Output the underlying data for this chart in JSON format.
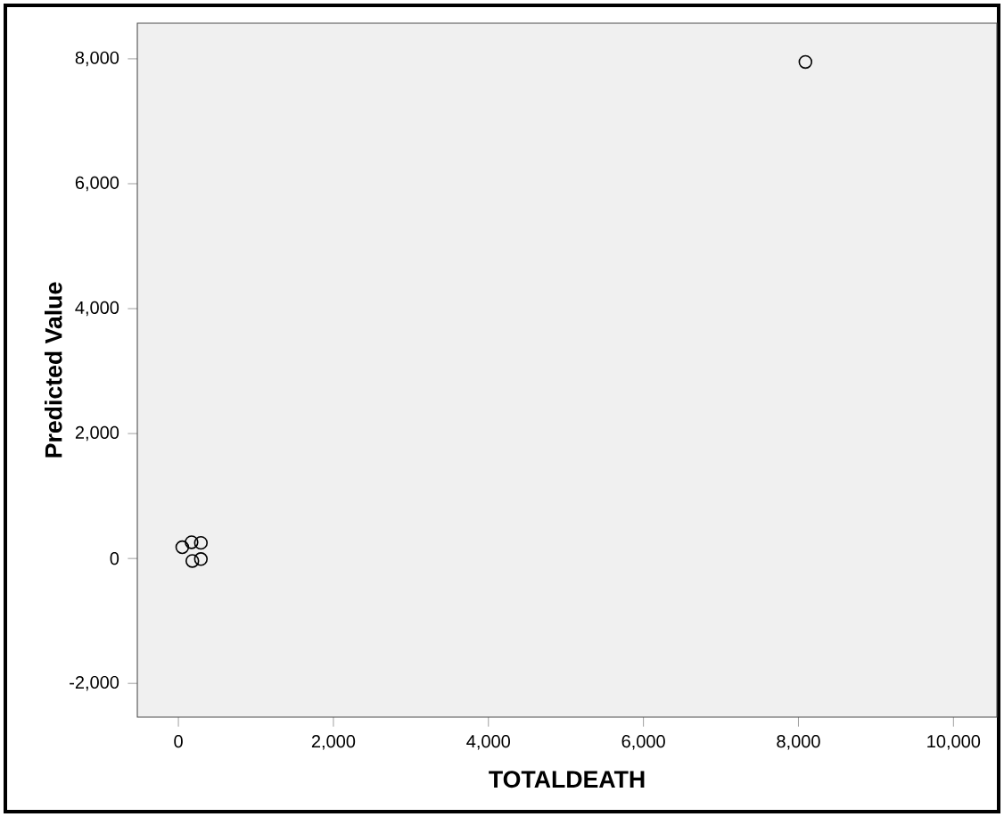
{
  "chart_data": {
    "type": "scatter",
    "xlabel": "TOTALDEATH",
    "ylabel": "Predicted Value",
    "x": [
      8090,
      50,
      170,
      290,
      180,
      290
    ],
    "values": [
      7950,
      180,
      260,
      250,
      -40,
      -10
    ],
    "color": "#000000",
    "marker": "circle",
    "xlim": [
      -530,
      10560
    ],
    "ylim": [
      -2540,
      8570
    ],
    "xticks": [
      0,
      {
        "value": 2000,
        "label": "2,000"
      },
      {
        "value": 4000,
        "label": "4,000"
      },
      {
        "value": 6000,
        "label": "6,000"
      },
      {
        "value": 8000,
        "label": "8,000"
      },
      {
        "value": 10000,
        "label": "10,000"
      }
    ],
    "yticks": [
      {
        "value": -2000,
        "label": "-2,000"
      },
      0,
      {
        "value": 2000,
        "label": "2,000"
      },
      {
        "value": 4000,
        "label": "4,000"
      },
      {
        "value": 6000,
        "label": "6,000"
      },
      {
        "value": 8000,
        "label": "8,000"
      }
    ]
  }
}
